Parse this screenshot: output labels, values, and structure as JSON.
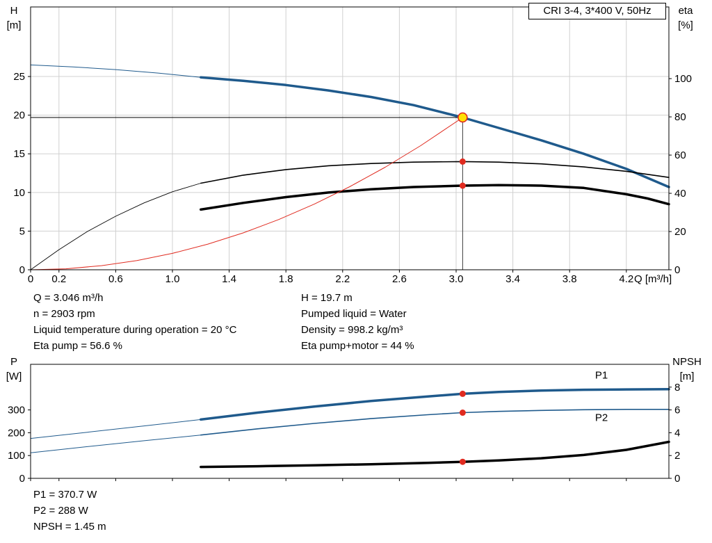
{
  "title_box": {
    "label": "CRI 3-4, 3*400 V, 50Hz"
  },
  "axis_corner_labels": {
    "top_left_title": "H",
    "top_left_unit": "[m]",
    "top_right_title": "eta",
    "top_right_unit": "[%]",
    "bottom_left_title": "P",
    "bottom_left_unit": "[W]",
    "bottom_right_title": "NPSH",
    "bottom_right_unit": "[m]"
  },
  "annotations": {
    "top_left": [
      "Q = 3.046 m³/h",
      "n = 2903 rpm",
      "Liquid temperature during operation = 20 °C",
      "Eta pump = 56.6 %"
    ],
    "top_right": [
      "H = 19.7 m",
      "Pumped liquid = Water",
      "Density = 998.2 kg/m³",
      "Eta pump+motor = 44 %"
    ],
    "bottom": [
      "P1 = 370.7 W",
      "P2 = 288 W",
      "NPSH = 1.45 m"
    ]
  },
  "colors": {
    "curve_blue": "#1f5a8c",
    "curve_black": "#000000",
    "curve_red": "#e02b20",
    "duty_fill": "#ffe105",
    "grid": "#d0d0d0",
    "axis": "#000000"
  },
  "chart_data": [
    {
      "type": "line",
      "name": "qh-efficiency-chart",
      "title": "CRI 3-4, 3*400 V, 50Hz",
      "xlabel": "Q [m³/h]",
      "ylabel_left": "H [m]",
      "ylabel_right": "eta [%]",
      "xlim": [
        0,
        4.5
      ],
      "show_x_tick_labels": true,
      "x_ticks": [
        {
          "v": 0,
          "label": "0"
        },
        {
          "v": 0.2,
          "label": "0.2"
        },
        {
          "v": 0.6,
          "label": "0.6"
        },
        {
          "v": 1.0,
          "label": "1.0"
        },
        {
          "v": 1.4,
          "label": "1.4"
        },
        {
          "v": 1.8,
          "label": "1.8"
        },
        {
          "v": 2.2,
          "label": "2.2"
        },
        {
          "v": 2.6,
          "label": "2.6"
        },
        {
          "v": 3.0,
          "label": "3.0"
        },
        {
          "v": 3.4,
          "label": "3.4"
        },
        {
          "v": 3.8,
          "label": "3.8"
        },
        {
          "v": 4.2,
          "label": "4.2"
        }
      ],
      "ylim_left": [
        0,
        34
      ],
      "y_ticks_left": [
        0,
        5,
        10,
        15,
        20,
        25
      ],
      "ylim_right": [
        0,
        137.5
      ],
      "y_ticks_right": [
        0,
        20,
        40,
        60,
        80,
        100
      ],
      "grid": true,
      "series": [
        {
          "name": "qh-curve-extension",
          "axis": "left",
          "color": "#1f5a8c",
          "width": 1,
          "x": [
            0,
            0.3,
            0.6,
            0.9,
            1.2
          ],
          "y": [
            26.5,
            26.25,
            25.9,
            25.45,
            24.9
          ]
        },
        {
          "name": "qh-curve",
          "axis": "left",
          "color": "#1f5a8c",
          "width": 3.5,
          "x": [
            1.2,
            1.5,
            1.8,
            2.1,
            2.4,
            2.7,
            3.046,
            3.3,
            3.6,
            3.9,
            4.2,
            4.5
          ],
          "y": [
            24.9,
            24.45,
            23.9,
            23.2,
            22.35,
            21.3,
            19.7,
            18.35,
            16.75,
            15.0,
            13.05,
            10.7
          ]
        },
        {
          "name": "eta-pump-extension",
          "axis": "right",
          "color": "#000000",
          "width": 0.9,
          "x": [
            0,
            0.2,
            0.4,
            0.6,
            0.8,
            1.0,
            1.2
          ],
          "y": [
            0,
            10.5,
            20,
            28,
            35,
            40.8,
            45.3
          ]
        },
        {
          "name": "eta-pump-curve",
          "axis": "right",
          "color": "#000000",
          "width": 1.6,
          "x": [
            1.2,
            1.5,
            1.8,
            2.1,
            2.4,
            2.7,
            3.046,
            3.3,
            3.6,
            3.9,
            4.2,
            4.5
          ],
          "y": [
            45.3,
            49.5,
            52.4,
            54.4,
            55.6,
            56.3,
            56.6,
            56.3,
            55.4,
            53.8,
            51.5,
            48.3
          ]
        },
        {
          "name": "eta-pump-motor-curve",
          "axis": "right",
          "color": "#000000",
          "width": 3.5,
          "x": [
            1.2,
            1.5,
            1.8,
            2.1,
            2.4,
            2.7,
            3.046,
            3.3,
            3.6,
            3.9,
            4.2,
            4.35,
            4.5
          ],
          "y": [
            31.5,
            35,
            38,
            40.4,
            42.1,
            43.3,
            44,
            44.3,
            44,
            42.8,
            39.5,
            37.3,
            34.3
          ]
        },
        {
          "name": "system-curve",
          "axis": "left",
          "color": "#e02b20",
          "width": 1,
          "x": [
            0,
            0.25,
            0.5,
            0.75,
            1.0,
            1.25,
            1.5,
            1.75,
            2.0,
            2.25,
            2.5,
            2.75,
            3.046
          ],
          "y": [
            0,
            0.13,
            0.53,
            1.19,
            2.12,
            3.32,
            4.78,
            6.5,
            8.49,
            10.75,
            13.27,
            16.06,
            19.7
          ]
        }
      ],
      "ref_lines": [
        {
          "type": "h",
          "name": "duty-head-line",
          "y": 19.7,
          "x0": 0,
          "x1": 3.046,
          "color": "#000000",
          "width": 1
        },
        {
          "type": "v",
          "name": "duty-flow-line",
          "x": 3.046,
          "y0": 0,
          "y1": 19.7,
          "color": "#3c3c3c",
          "width": 1
        }
      ],
      "markers": [
        {
          "name": "duty-point",
          "x": 3.046,
          "y": 19.7,
          "axis": "left",
          "r": 6.5,
          "fill": "#ffe105",
          "stroke": "#e02b20",
          "stroke_width": 1.6,
          "interactable": true
        },
        {
          "name": "eta-pump-operating-dot",
          "x": 3.046,
          "y": 56.6,
          "axis": "right",
          "r": 4.5,
          "fill": "#e02b20",
          "interactable": false
        },
        {
          "name": "eta-pump-motor-operating-dot",
          "x": 3.046,
          "y": 44,
          "axis": "right",
          "r": 4.5,
          "fill": "#e02b20",
          "interactable": false
        }
      ],
      "labels": []
    },
    {
      "type": "line",
      "name": "power-npsh-chart",
      "title": "Power and NPSH curves",
      "xlabel": "",
      "ylabel_left": "P [W]",
      "ylabel_right": "NPSH [m]",
      "xlim": [
        0,
        4.5
      ],
      "show_x_tick_labels": false,
      "x_ticks": [
        {
          "v": 0,
          "label": "0"
        },
        {
          "v": 0.2,
          "label": "0.2"
        },
        {
          "v": 0.6,
          "label": "0.6"
        },
        {
          "v": 1.0,
          "label": "1.0"
        },
        {
          "v": 1.4,
          "label": "1.4"
        },
        {
          "v": 1.8,
          "label": "1.8"
        },
        {
          "v": 2.2,
          "label": "2.2"
        },
        {
          "v": 2.6,
          "label": "2.6"
        },
        {
          "v": 3.0,
          "label": "3.0"
        },
        {
          "v": 3.4,
          "label": "3.4"
        },
        {
          "v": 3.8,
          "label": "3.8"
        },
        {
          "v": 4.2,
          "label": "4.2"
        }
      ],
      "ylim_left": [
        0,
        500
      ],
      "y_ticks_left": [
        0,
        100,
        200,
        300
      ],
      "ylim_right": [
        0,
        10
      ],
      "y_ticks_right": [
        0,
        2,
        4,
        6,
        8
      ],
      "grid": false,
      "series": [
        {
          "name": "p1-extension",
          "axis": "left",
          "color": "#1f5a8c",
          "width": 1,
          "x": [
            0,
            0.4,
            0.8,
            1.2
          ],
          "y": [
            175,
            202,
            230,
            258
          ]
        },
        {
          "name": "p1-curve",
          "axis": "left",
          "color": "#1f5a8c",
          "width": 3.5,
          "x": [
            1.2,
            1.6,
            2.0,
            2.4,
            2.8,
            3.046,
            3.3,
            3.6,
            3.9,
            4.2,
            4.5
          ],
          "y": [
            258,
            288,
            315,
            339,
            359,
            370.7,
            379,
            385,
            388.5,
            390,
            391
          ]
        },
        {
          "name": "p2-extension",
          "axis": "left",
          "color": "#1f5a8c",
          "width": 1,
          "x": [
            0,
            0.4,
            0.8,
            1.2
          ],
          "y": [
            112,
            139,
            165,
            190
          ]
        },
        {
          "name": "p2-curve",
          "axis": "left",
          "color": "#1f5a8c",
          "width": 1.6,
          "x": [
            1.2,
            1.6,
            2.0,
            2.4,
            2.8,
            3.046,
            3.3,
            3.6,
            3.9,
            4.2,
            4.5
          ],
          "y": [
            190,
            217,
            241,
            262,
            279,
            288,
            293.5,
            298,
            301,
            302.5,
            302.5
          ]
        },
        {
          "name": "npsh-curve",
          "axis": "right",
          "color": "#000000",
          "width": 3.5,
          "x": [
            1.2,
            1.6,
            2.0,
            2.4,
            2.8,
            3.046,
            3.3,
            3.6,
            3.9,
            4.2,
            4.5
          ],
          "y": [
            1.0,
            1.06,
            1.14,
            1.24,
            1.36,
            1.45,
            1.57,
            1.76,
            2.05,
            2.5,
            3.2
          ]
        }
      ],
      "ref_lines": [],
      "markers": [
        {
          "name": "p1-operating-dot",
          "x": 3.046,
          "y": 370.7,
          "axis": "left",
          "r": 4.5,
          "fill": "#e02b20",
          "interactable": false
        },
        {
          "name": "p2-operating-dot",
          "x": 3.046,
          "y": 288,
          "axis": "left",
          "r": 4.5,
          "fill": "#e02b20",
          "interactable": false
        },
        {
          "name": "npsh-operating-dot",
          "x": 3.046,
          "y": 1.45,
          "axis": "right",
          "r": 4.5,
          "fill": "#e02b20",
          "interactable": false
        }
      ],
      "labels": [
        {
          "name": "p1-curve-label",
          "text": "P1",
          "x": 3.98,
          "y": 438,
          "axis": "left",
          "color": "#1f5a8c"
        },
        {
          "name": "p2-curve-label",
          "text": "P2",
          "x": 3.98,
          "y": 252,
          "axis": "left",
          "color": "#1f5a8c"
        }
      ]
    }
  ]
}
